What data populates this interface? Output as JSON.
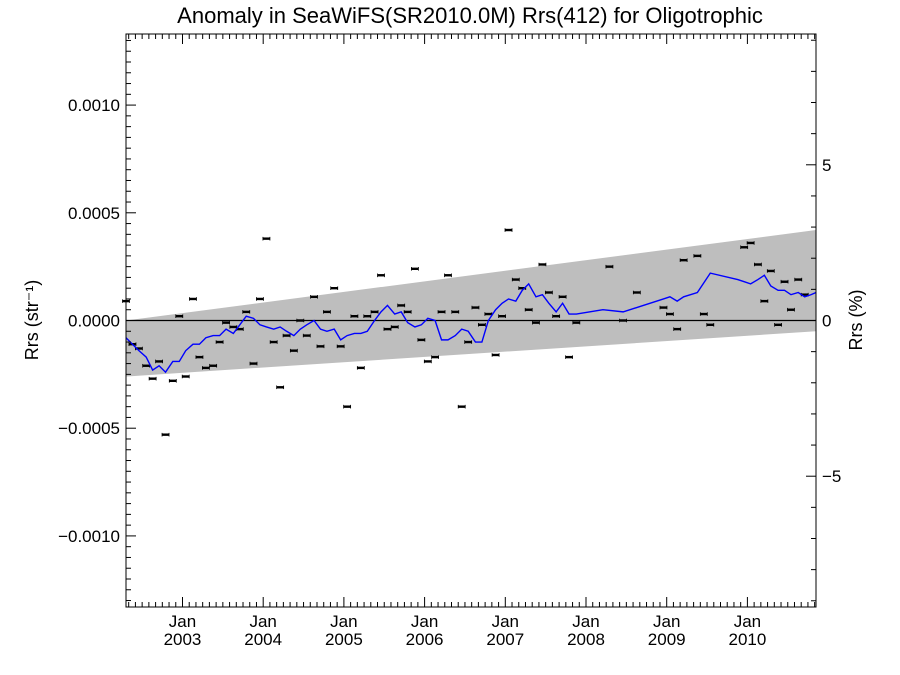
{
  "chart_data": {
    "type": "scatter",
    "title": "Anomaly in SeaWiFS(SR2010.0M) Rrs(412) for Oligotrophic",
    "ylabel": "Rrs (str⁻¹)",
    "ylabel2": "Rrs (%)",
    "xlabel": "",
    "xlim": [
      2002.3,
      2010.85
    ],
    "ylim": [
      -0.00133,
      0.00133
    ],
    "ylim_right_percent": [
      -9.2,
      9.2
    ],
    "x_tick_labels": [
      {
        "month": "Jan",
        "year": "2003",
        "x": 2003.0
      },
      {
        "month": "Jan",
        "year": "2004",
        "x": 2004.0
      },
      {
        "month": "Jan",
        "year": "2005",
        "x": 2005.0
      },
      {
        "month": "Jan",
        "year": "2006",
        "x": 2006.0
      },
      {
        "month": "Jan",
        "year": "2007",
        "x": 2007.0
      },
      {
        "month": "Jan",
        "year": "2008",
        "x": 2008.0
      },
      {
        "month": "Jan",
        "year": "2009",
        "x": 2009.0
      },
      {
        "month": "Jan",
        "year": "2010",
        "x": 2010.0
      }
    ],
    "y_tick_labels": [
      {
        "label": "0.0010",
        "value": 0.001
      },
      {
        "label": "0.0005",
        "value": 0.0005
      },
      {
        "label": "0.0000",
        "value": 0.0
      },
      {
        "label": "−0.0005",
        "value": -0.0005
      },
      {
        "label": "−0.0010",
        "value": -0.001
      }
    ],
    "y2_tick_labels": [
      {
        "label": "5",
        "value": 5
      },
      {
        "label": "0",
        "value": 0
      },
      {
        "label": "−5",
        "value": -5
      }
    ],
    "zero_line": 0.0,
    "band": {
      "color": "#bebebe",
      "upper": [
        [
          2002.3,
          0.0
        ],
        [
          2010.85,
          0.00042
        ]
      ],
      "lower": [
        [
          2002.3,
          -0.00026
        ],
        [
          2010.85,
          -5e-05
        ]
      ]
    },
    "series": [
      {
        "name": "",
        "kind": "points",
        "color": "#000000",
        "points": [
          [
            2002.3,
            9e-05
          ],
          [
            2002.38,
            -0.00011
          ],
          [
            2002.46,
            -0.00013
          ],
          [
            2002.55,
            -0.00021
          ],
          [
            2002.63,
            -0.00027
          ],
          [
            2002.71,
            -0.00019
          ],
          [
            2002.79,
            -0.00053
          ],
          [
            2002.88,
            -0.00028
          ],
          [
            2002.96,
            2e-05
          ],
          [
            2003.04,
            -0.00026
          ],
          [
            2003.13,
            0.0001
          ],
          [
            2003.21,
            -0.00017
          ],
          [
            2003.29,
            -0.00022
          ],
          [
            2003.38,
            -0.00021
          ],
          [
            2003.46,
            -0.0001
          ],
          [
            2003.54,
            -1e-05
          ],
          [
            2003.63,
            -3e-05
          ],
          [
            2003.71,
            -4e-05
          ],
          [
            2003.79,
            4e-05
          ],
          [
            2003.88,
            -0.0002
          ],
          [
            2003.96,
            0.0001
          ],
          [
            2004.04,
            0.00038
          ],
          [
            2004.13,
            -0.0001
          ],
          [
            2004.21,
            -0.00031
          ],
          [
            2004.29,
            -7e-05
          ],
          [
            2004.38,
            -0.00014
          ],
          [
            2004.46,
            0.0
          ],
          [
            2004.54,
            -7e-05
          ],
          [
            2004.63,
            0.00011
          ],
          [
            2004.71,
            -0.00012
          ],
          [
            2004.79,
            4e-05
          ],
          [
            2004.88,
            0.00015
          ],
          [
            2004.96,
            -0.00012
          ],
          [
            2005.04,
            -0.0004
          ],
          [
            2005.13,
            2e-05
          ],
          [
            2005.21,
            -0.00022
          ],
          [
            2005.29,
            2e-05
          ],
          [
            2005.38,
            4e-05
          ],
          [
            2005.46,
            0.00021
          ],
          [
            2005.54,
            -4e-05
          ],
          [
            2005.63,
            -3e-05
          ],
          [
            2005.71,
            7e-05
          ],
          [
            2005.79,
            4e-05
          ],
          [
            2005.88,
            0.00024
          ],
          [
            2005.96,
            -9e-05
          ],
          [
            2006.04,
            -0.00019
          ],
          [
            2006.13,
            -0.00017
          ],
          [
            2006.21,
            4e-05
          ],
          [
            2006.29,
            0.00021
          ],
          [
            2006.38,
            4e-05
          ],
          [
            2006.46,
            -0.0004
          ],
          [
            2006.54,
            -0.0001
          ],
          [
            2006.63,
            6e-05
          ],
          [
            2006.71,
            -2e-05
          ],
          [
            2006.79,
            3e-05
          ],
          [
            2006.88,
            -0.00016
          ],
          [
            2006.96,
            2e-05
          ],
          [
            2007.04,
            0.00042
          ],
          [
            2007.13,
            0.00019
          ],
          [
            2007.21,
            0.00015
          ],
          [
            2007.29,
            5e-05
          ],
          [
            2007.38,
            -1e-05
          ],
          [
            2007.46,
            0.00026
          ],
          [
            2007.54,
            0.00013
          ],
          [
            2007.63,
            2e-05
          ],
          [
            2007.71,
            0.00011
          ],
          [
            2007.79,
            -0.00017
          ],
          [
            2007.88,
            -1e-05
          ],
          [
            2008.29,
            0.00025
          ],
          [
            2008.46,
            0.0
          ],
          [
            2008.63,
            0.00013
          ],
          [
            2008.96,
            6e-05
          ],
          [
            2009.04,
            3e-05
          ],
          [
            2009.13,
            -4e-05
          ],
          [
            2009.21,
            0.00028
          ],
          [
            2009.38,
            0.0003
          ],
          [
            2009.46,
            3e-05
          ],
          [
            2009.54,
            -2e-05
          ],
          [
            2009.96,
            0.00034
          ],
          [
            2010.04,
            0.00036
          ],
          [
            2010.13,
            0.00026
          ],
          [
            2010.21,
            9e-05
          ],
          [
            2010.29,
            0.00023
          ],
          [
            2010.38,
            -2e-05
          ],
          [
            2010.46,
            0.00018
          ],
          [
            2010.54,
            5e-05
          ],
          [
            2010.63,
            0.00019
          ],
          [
            2010.71,
            0.00012
          ]
        ]
      },
      {
        "name": "",
        "kind": "line",
        "color": "#0000ff",
        "points": [
          [
            2002.3,
            -8e-05
          ],
          [
            2002.38,
            -0.00011
          ],
          [
            2002.46,
            -0.00014
          ],
          [
            2002.55,
            -0.00017
          ],
          [
            2002.63,
            -0.00023
          ],
          [
            2002.71,
            -0.00021
          ],
          [
            2002.79,
            -0.00024
          ],
          [
            2002.88,
            -0.00019
          ],
          [
            2002.96,
            -0.00019
          ],
          [
            2003.04,
            -0.00014
          ],
          [
            2003.13,
            -0.00011
          ],
          [
            2003.21,
            -0.00011
          ],
          [
            2003.29,
            -8e-05
          ],
          [
            2003.38,
            -7e-05
          ],
          [
            2003.46,
            -7e-05
          ],
          [
            2003.54,
            -4e-05
          ],
          [
            2003.63,
            -6e-05
          ],
          [
            2003.71,
            -2e-05
          ],
          [
            2003.79,
            2e-05
          ],
          [
            2003.88,
            1e-05
          ],
          [
            2003.96,
            -2e-05
          ],
          [
            2004.04,
            -3e-05
          ],
          [
            2004.13,
            -4e-05
          ],
          [
            2004.21,
            -3e-05
          ],
          [
            2004.29,
            -5e-05
          ],
          [
            2004.38,
            -7e-05
          ],
          [
            2004.46,
            -4e-05
          ],
          [
            2004.54,
            -2e-05
          ],
          [
            2004.63,
            0.0
          ],
          [
            2004.71,
            -4e-05
          ],
          [
            2004.79,
            -5e-05
          ],
          [
            2004.88,
            -4e-05
          ],
          [
            2004.96,
            -9e-05
          ],
          [
            2005.04,
            -7e-05
          ],
          [
            2005.13,
            -6e-05
          ],
          [
            2005.21,
            -6e-05
          ],
          [
            2005.29,
            -5e-05
          ],
          [
            2005.38,
            0.0
          ],
          [
            2005.46,
            4e-05
          ],
          [
            2005.54,
            7e-05
          ],
          [
            2005.63,
            3e-05
          ],
          [
            2005.71,
            4e-05
          ],
          [
            2005.79,
            -1e-05
          ],
          [
            2005.88,
            -3e-05
          ],
          [
            2005.96,
            -2e-05
          ],
          [
            2006.04,
            1e-05
          ],
          [
            2006.13,
            0.0
          ],
          [
            2006.21,
            -9e-05
          ],
          [
            2006.29,
            -9e-05
          ],
          [
            2006.38,
            -7e-05
          ],
          [
            2006.46,
            -4e-05
          ],
          [
            2006.54,
            -5e-05
          ],
          [
            2006.63,
            -0.0001
          ],
          [
            2006.71,
            -0.0001
          ],
          [
            2006.79,
            0.0
          ],
          [
            2006.88,
            5e-05
          ],
          [
            2006.96,
            8e-05
          ],
          [
            2007.04,
            0.0001
          ],
          [
            2007.13,
            9e-05
          ],
          [
            2007.21,
            0.00014
          ],
          [
            2007.29,
            0.00017
          ],
          [
            2007.38,
            0.00011
          ],
          [
            2007.46,
            0.00012
          ],
          [
            2007.54,
            8e-05
          ],
          [
            2007.63,
            4e-05
          ],
          [
            2007.71,
            8e-05
          ],
          [
            2007.79,
            3e-05
          ],
          [
            2007.88,
            3e-05
          ],
          [
            2008.21,
            5e-05
          ],
          [
            2008.46,
            4e-05
          ],
          [
            2008.71,
            7e-05
          ],
          [
            2008.96,
            0.0001
          ],
          [
            2009.04,
            0.00011
          ],
          [
            2009.13,
            9e-05
          ],
          [
            2009.21,
            0.00011
          ],
          [
            2009.38,
            0.00013
          ],
          [
            2009.54,
            0.00022
          ],
          [
            2009.88,
            0.00019
          ],
          [
            2009.96,
            0.00018
          ],
          [
            2010.04,
            0.00017
          ],
          [
            2010.13,
            0.00019
          ],
          [
            2010.21,
            0.00021
          ],
          [
            2010.29,
            0.00016
          ],
          [
            2010.38,
            0.00014
          ],
          [
            2010.46,
            0.00014
          ],
          [
            2010.54,
            0.00012
          ],
          [
            2010.63,
            0.00013
          ],
          [
            2010.71,
            0.00011
          ],
          [
            2010.79,
            0.00012
          ],
          [
            2010.85,
            0.00013
          ]
        ]
      }
    ],
    "grid": false,
    "legend": "none"
  }
}
